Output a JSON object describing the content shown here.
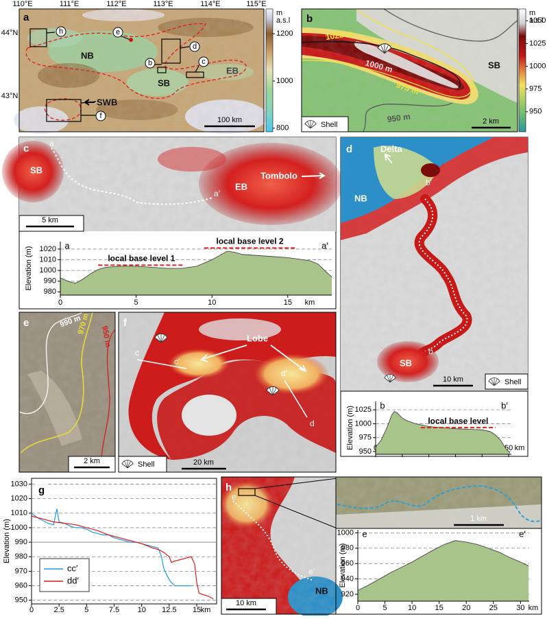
{
  "panels": {
    "a": {
      "letter": "a",
      "lon_labels": [
        "110°E",
        "111°E",
        "112°E",
        "113°E",
        "114°E",
        "115°E"
      ],
      "lat_labels": [
        "44°N",
        "43°N"
      ],
      "regions": [
        "NB",
        "SB",
        "EB",
        "SWB"
      ],
      "markers": [
        "b",
        "c",
        "d",
        "e",
        "f",
        "h"
      ],
      "scale_bar": "100 km",
      "colorbar": {
        "unit": [
          "m",
          "a.s.l"
        ],
        "lim": [
          785,
          1305
        ],
        "ticks": [
          1200,
          1000,
          800
        ]
      }
    },
    "b": {
      "letter": "b",
      "contours": [
        "1025 m",
        "1000 m",
        "975 m",
        "950 m"
      ],
      "region": "SB",
      "legend": "Shell",
      "scale_bar": "2 km",
      "colorbar": {
        "unit": [
          "m",
          "a.s.l"
        ],
        "lim": [
          928,
          1063
        ],
        "ticks": [
          1050,
          1025,
          1000,
          975,
          950
        ]
      }
    },
    "c": {
      "letter": "c",
      "labels": [
        "a",
        "a′",
        "SB",
        "EB",
        "Tombolo"
      ],
      "scale_bar": "5 km"
    },
    "d": {
      "letter": "d",
      "labels": [
        "Delta",
        "NB",
        "b′",
        "b",
        "SB"
      ],
      "scale_bar": "10 km",
      "legend": "Shell"
    },
    "e": {
      "letter": "e",
      "contours": [
        "990 m",
        "970 m",
        "950 m"
      ],
      "scale_bar": "2 km"
    },
    "f": {
      "letter": "f",
      "labels": [
        "Lobe",
        "c",
        "c′",
        "d′",
        "d"
      ],
      "legend": "Shell",
      "scale_bar": "20 km"
    },
    "g": {
      "letter": "g"
    },
    "h": {
      "letter": "h",
      "labels": [
        "e",
        "e′",
        "NB"
      ],
      "scale_bar": "10 km",
      "inset_scale_bar": "1 km"
    }
  },
  "chart_data": [
    {
      "type": "area",
      "ylabel": "Elevation (m)",
      "xlabel": "km",
      "end_labels": [
        "a",
        "a′"
      ],
      "color": "#a9c48a",
      "line_color": "#333333",
      "x": [
        0,
        0.5,
        1,
        1.5,
        2,
        2.5,
        3,
        4,
        5,
        6,
        7,
        8,
        9,
        9.5,
        10,
        10.5,
        11,
        11.5,
        12,
        13,
        14,
        15,
        16,
        16.5,
        17,
        17.5,
        17.9
      ],
      "values": [
        993,
        990,
        988,
        992,
        997,
        1001,
        1003,
        1004,
        1004,
        1003,
        1002,
        1002,
        1004,
        1007,
        1010,
        1014,
        1018,
        1017,
        1015,
        1014,
        1013,
        1012,
        1010,
        1009,
        1006,
        999,
        994
      ],
      "hlines": [
        {
          "value": 1005,
          "from": 2.5,
          "to": 8.2,
          "label": "local base level 1"
        },
        {
          "value": 1021,
          "from": 9.5,
          "to": 15.5,
          "label": "local base level 2"
        }
      ],
      "hline_color": "#e02020",
      "xlim": [
        0,
        17.9
      ],
      "ylim": [
        977,
        1027
      ],
      "xticks": [
        0,
        5,
        10,
        15
      ],
      "yticks": [
        980,
        990,
        1000,
        1010,
        1020
      ],
      "grid": true
    },
    {
      "type": "area",
      "ylabel": "Elevation (m)",
      "xlabel": "km",
      "end_labels": [
        "b",
        "b′"
      ],
      "color": "#a9c48a",
      "line_color": "#333333",
      "x": [
        0,
        2,
        4,
        6,
        7,
        8,
        10,
        12,
        15,
        18,
        20,
        25,
        30,
        35,
        40,
        43,
        45,
        47,
        48,
        49,
        50,
        50.5
      ],
      "values": [
        958,
        970,
        990,
        1015,
        1022,
        1020,
        1010,
        1005,
        1000,
        997,
        995,
        993,
        991,
        990,
        989,
        986,
        980,
        970,
        962,
        955,
        950,
        948
      ],
      "hlines": [
        {
          "value": 993,
          "from": 17,
          "to": 45,
          "label": "local base level"
        }
      ],
      "hline_color": "#e02020",
      "xlim": [
        0,
        51
      ],
      "ylim": [
        945,
        1040
      ],
      "xticks": [
        0,
        10,
        20,
        30,
        40,
        50
      ],
      "yticks": [
        950,
        975,
        1000,
        1025
      ],
      "grid": true
    },
    {
      "type": "line",
      "ylabel": "Elevation (m)",
      "xlabel": "km",
      "legend": "lower left",
      "reference_line": 990,
      "reference_color": "#999999",
      "series": [
        {
          "name": "cc′",
          "color": "#1e9be0",
          "x": [
            0,
            0.5,
            1,
            1.5,
            2,
            2.3,
            2.5,
            3,
            3.5,
            4,
            4.5,
            5,
            5.5,
            6,
            6.5,
            7,
            7.5,
            8,
            8.5,
            9,
            9.5,
            10,
            10.5,
            11,
            11.5,
            11.8,
            12,
            12.3,
            12.6,
            13,
            13.5,
            14,
            14.5
          ],
          "values": [
            1010,
            1007,
            1005,
            1003,
            1002,
            1013,
            1004,
            1003,
            1001,
            1000,
            1000,
            999,
            997,
            996,
            995,
            995,
            993,
            992,
            991,
            990,
            990,
            989,
            988,
            987,
            986,
            980,
            972,
            967,
            963,
            960,
            960,
            960,
            960
          ]
        },
        {
          "name": "dd′",
          "color": "#e01818",
          "x": [
            0,
            1,
            2,
            3,
            4,
            5,
            6,
            7,
            8,
            9,
            10,
            11,
            11.5,
            12,
            12.5,
            12.7,
            13,
            13.5,
            14,
            14.5,
            14.8,
            15,
            15.2,
            15.5,
            16,
            16.5
          ],
          "values": [
            1008,
            1006,
            1004,
            1003,
            1002,
            1000,
            998,
            995,
            993,
            991,
            989,
            986,
            985,
            983,
            980,
            976,
            977,
            978,
            979,
            980,
            975,
            962,
            955,
            954,
            953,
            951
          ]
        }
      ],
      "xlim": [
        0,
        16.8
      ],
      "ylim": [
        947.5,
        1034
      ],
      "xticks": [
        0,
        2.5,
        5,
        7.5,
        10,
        12.5,
        15
      ],
      "yticks": [
        950,
        960,
        970,
        980,
        990,
        1000,
        1010,
        1020,
        1030
      ],
      "grid": true
    },
    {
      "type": "area",
      "ylabel": "Elevation (m)",
      "xlabel": "km",
      "end_labels": [
        "e",
        "e′"
      ],
      "color": "#a9c48a",
      "line_color": "#333333",
      "x": [
        0,
        2,
        4,
        6,
        8,
        10,
        12,
        14,
        16,
        18,
        20,
        22,
        24,
        26,
        28,
        30,
        31.5
      ],
      "values": [
        925,
        932,
        940,
        948,
        955,
        962,
        970,
        978,
        985,
        990,
        988,
        985,
        980,
        975,
        968,
        962,
        957
      ],
      "xlim": [
        0,
        31.6
      ],
      "ylim": [
        911,
        1004
      ],
      "xticks": [
        0,
        5,
        10,
        15,
        20,
        25,
        30
      ],
      "yticks": [
        920,
        940,
        960,
        980,
        1000
      ],
      "grid": true
    }
  ]
}
